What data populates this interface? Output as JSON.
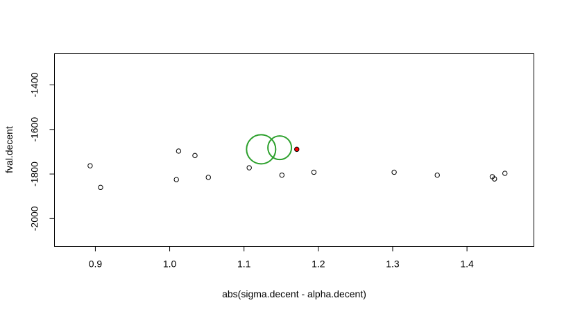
{
  "chart_data": {
    "type": "scatter",
    "xlabel": "abs(sigma.decent - alpha.decent)",
    "ylabel": "fval.decent",
    "xlim": [
      0.845,
      1.49
    ],
    "ylim": [
      -2125,
      -1260
    ],
    "xticks": [
      "0.9",
      "1.0",
      "1.1",
      "1.2",
      "1.3",
      "1.4"
    ],
    "yticks": [
      "-2000",
      "-1800",
      "-1600",
      "-1400"
    ],
    "series": [
      {
        "marker": "open-circle",
        "color": "#000000",
        "points": [
          {
            "x": 0.893,
            "y": -1763
          },
          {
            "x": 0.907,
            "y": -1860
          },
          {
            "x": 1.009,
            "y": -1825
          },
          {
            "x": 1.012,
            "y": -1697
          },
          {
            "x": 1.034,
            "y": -1717
          },
          {
            "x": 1.052,
            "y": -1815
          },
          {
            "x": 1.107,
            "y": -1772
          },
          {
            "x": 1.151,
            "y": -1805
          },
          {
            "x": 1.194,
            "y": -1792
          },
          {
            "x": 1.302,
            "y": -1792
          },
          {
            "x": 1.36,
            "y": -1805
          },
          {
            "x": 1.434,
            "y": -1812
          },
          {
            "x": 1.437,
            "y": -1822
          },
          {
            "x": 1.451,
            "y": -1797
          }
        ]
      },
      {
        "marker": "filled-circle",
        "color": "#ff0000",
        "points": [
          {
            "x": 1.171,
            "y": -1689
          }
        ]
      },
      {
        "marker": "large-open-circle",
        "color": "#2ca02c",
        "points": [
          {
            "x": 1.123,
            "y": -1689
          },
          {
            "x": 1.148,
            "y": -1682
          }
        ]
      }
    ]
  }
}
